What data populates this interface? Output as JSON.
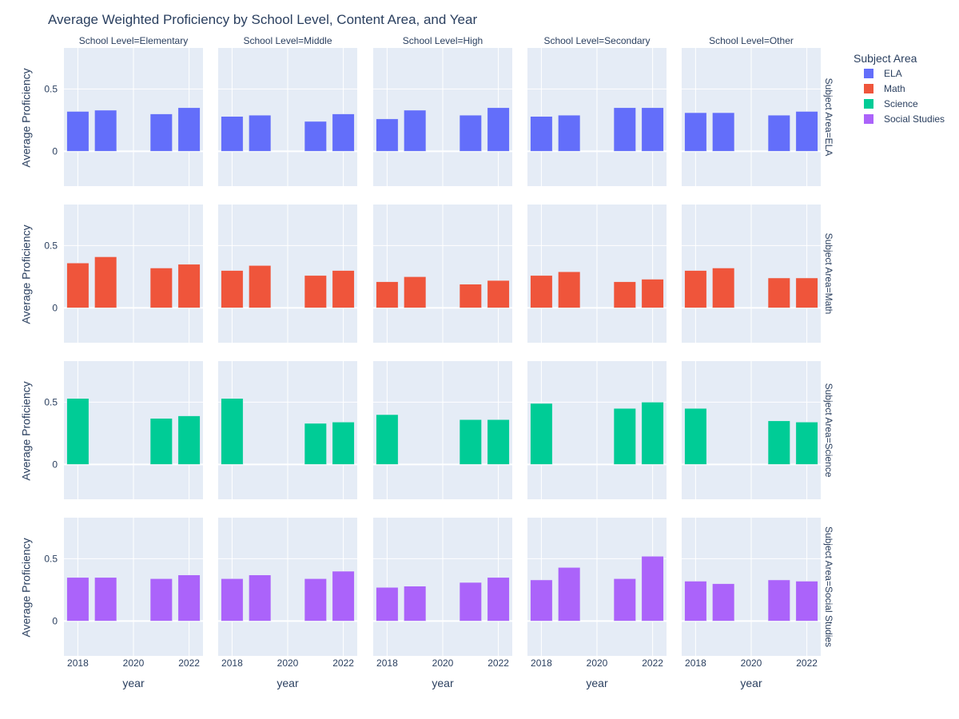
{
  "chart_data": {
    "type": "bar",
    "title": "Average Weighted Proficiency by School Level, Content Area, and Year",
    "xlabel": "year",
    "ylabel": "Average Proficiency",
    "ylim": [
      -0.28,
      0.83
    ],
    "xlim": [
      2017.5,
      2022.5
    ],
    "y_ticks": [
      0,
      0.5
    ],
    "y_tick_labels": [
      "0",
      "0.5"
    ],
    "x_ticks": [
      2018,
      2020,
      2022
    ],
    "x_tick_labels": [
      "2018",
      "2020",
      "2022"
    ],
    "grid": true,
    "legend": {
      "title": "Subject Area",
      "placement": "right"
    },
    "facet_col_prefix": "School Level=",
    "facet_row_prefix": "Subject Area=",
    "columns": [
      "Elementary",
      "Middle",
      "High",
      "Secondary",
      "Other"
    ],
    "years": [
      2018,
      2019,
      2021,
      2022
    ],
    "series": [
      {
        "name": "ELA",
        "color": "#636efa",
        "values": [
          [
            0.32,
            0.33,
            0.3,
            0.35
          ],
          [
            0.28,
            0.29,
            0.24,
            0.3
          ],
          [
            0.26,
            0.33,
            0.29,
            0.35
          ],
          [
            0.28,
            0.29,
            0.35,
            0.35
          ],
          [
            0.31,
            0.31,
            0.29,
            0.32
          ]
        ]
      },
      {
        "name": "Math",
        "color": "#ef553b",
        "values": [
          [
            0.36,
            0.41,
            0.32,
            0.35
          ],
          [
            0.3,
            0.34,
            0.26,
            0.3
          ],
          [
            0.21,
            0.25,
            0.19,
            0.22
          ],
          [
            0.26,
            0.29,
            0.21,
            0.23
          ],
          [
            0.3,
            0.32,
            0.24,
            0.24
          ]
        ]
      },
      {
        "name": "Science",
        "color": "#00cc96",
        "values": [
          [
            0.53,
            null,
            0.37,
            0.39
          ],
          [
            0.53,
            null,
            0.33,
            0.34
          ],
          [
            0.4,
            null,
            0.36,
            0.36
          ],
          [
            0.49,
            null,
            0.45,
            0.5
          ],
          [
            0.45,
            null,
            0.35,
            0.34
          ]
        ]
      },
      {
        "name": "Social Studies",
        "color": "#ab63fa",
        "values": [
          [
            0.35,
            0.35,
            0.34,
            0.37
          ],
          [
            0.34,
            0.37,
            0.34,
            0.4
          ],
          [
            0.27,
            0.28,
            0.31,
            0.35
          ],
          [
            0.33,
            0.43,
            0.34,
            0.52
          ],
          [
            0.32,
            0.3,
            0.33,
            0.32
          ]
        ]
      }
    ]
  }
}
